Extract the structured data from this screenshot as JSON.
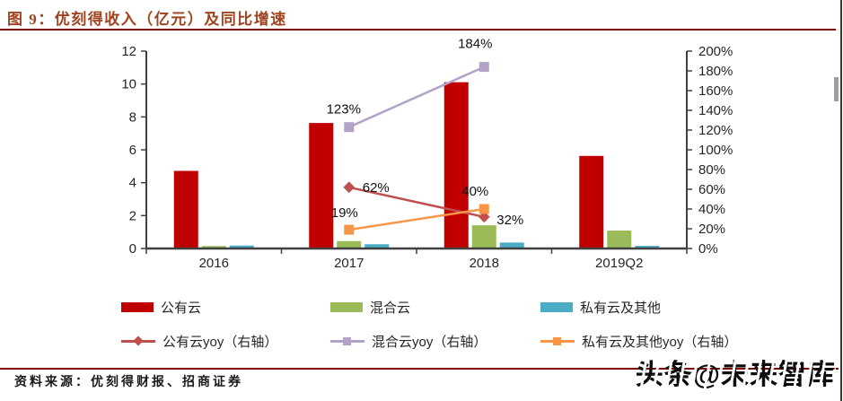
{
  "figure": {
    "title": "图 9：优刻得收入（亿元）及同比增速",
    "source": "资料来源：优刻得财报、招商证券",
    "watermark": "头条@未来智库"
  },
  "colors": {
    "title": "#A0431F",
    "rule": "#7E0505",
    "axis": "#404040",
    "public_cloud": "#C00000",
    "hybrid_cloud": "#9BBB59",
    "private_cloud": "#4BACC6",
    "public_yoy": "#C0504D",
    "hybrid_yoy": "#B2A2C7",
    "private_yoy": "#F79646"
  },
  "chart_data": {
    "type": "bar+line",
    "title": "优刻得收入（亿元）及同比增速",
    "categories": [
      "2016",
      "2017",
      "2018",
      "2019Q2"
    ],
    "bar_series": [
      {
        "name": "公有云",
        "color": "#C00000",
        "axis": "left",
        "values": [
          4.72,
          7.63,
          10.11,
          5.63
        ]
      },
      {
        "name": "混合云",
        "color": "#9BBB59",
        "axis": "left",
        "values": [
          0.15,
          0.45,
          1.41,
          1.09
        ]
      },
      {
        "name": "私有云及其他",
        "color": "#4BACC6",
        "axis": "left",
        "values": [
          0.18,
          0.26,
          0.36,
          0.16
        ]
      }
    ],
    "line_series": [
      {
        "name": "公有云yoy（右轴）",
        "color": "#C0504D",
        "marker": "diamond",
        "axis": "right",
        "values": [
          null,
          62,
          32,
          null
        ],
        "labels": [
          null,
          "62%",
          "32%",
          null
        ]
      },
      {
        "name": "混合云yoy（右轴）",
        "color": "#B2A2C7",
        "marker": "square",
        "axis": "right",
        "values": [
          null,
          123,
          184,
          null
        ],
        "labels": [
          null,
          "123%",
          "184%",
          null
        ]
      },
      {
        "name": "私有云及其他yoy（右轴）",
        "color": "#F79646",
        "marker": "square",
        "axis": "right",
        "values": [
          null,
          19,
          40,
          null
        ],
        "labels": [
          null,
          "19%",
          "40%",
          null
        ]
      }
    ],
    "left_axis": {
      "min": 0,
      "max": 12,
      "step": 2,
      "ticks": [
        "0",
        "2",
        "4",
        "6",
        "8",
        "10",
        "12"
      ]
    },
    "right_axis": {
      "min": 0,
      "max": 200,
      "step": 20,
      "ticks": [
        "0%",
        "20%",
        "40%",
        "60%",
        "80%",
        "100%",
        "120%",
        "140%",
        "160%",
        "180%",
        "200%"
      ]
    },
    "grid": false,
    "legend_position": "bottom"
  },
  "legend": {
    "rows": 2,
    "columns": 3
  }
}
